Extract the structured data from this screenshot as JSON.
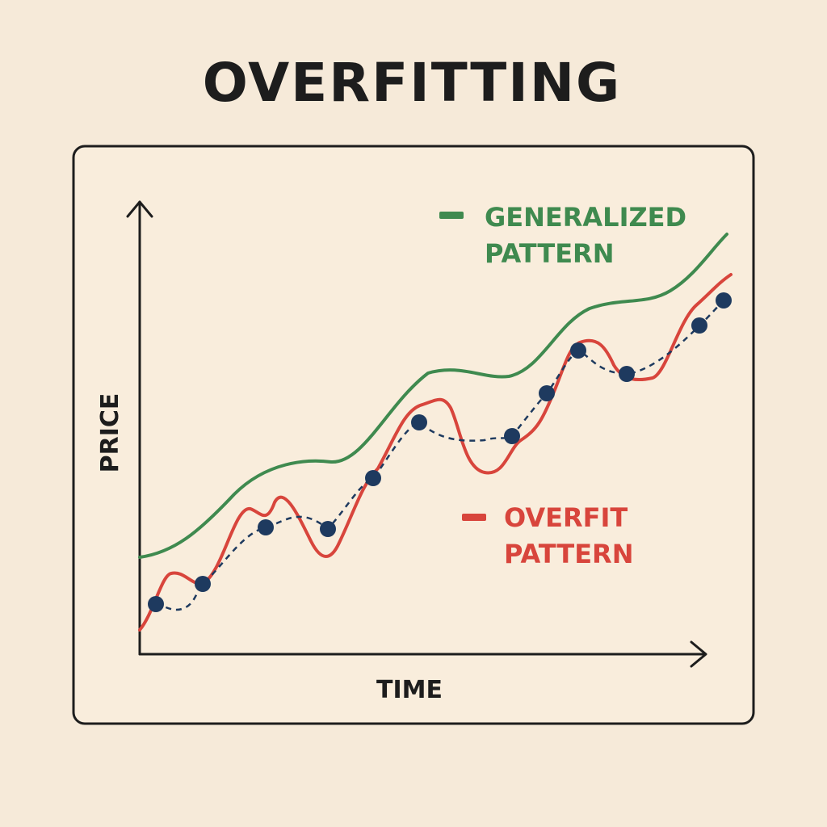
{
  "header": {
    "title": "OVERFITTING"
  },
  "axes": {
    "y_label": "PRICE",
    "x_label": "TIME"
  },
  "legend": [
    {
      "lines": [
        "GENERALIZED",
        "PATTERN"
      ]
    },
    {
      "lines": [
        "OVERFIT",
        "PATTERN"
      ]
    }
  ]
}
